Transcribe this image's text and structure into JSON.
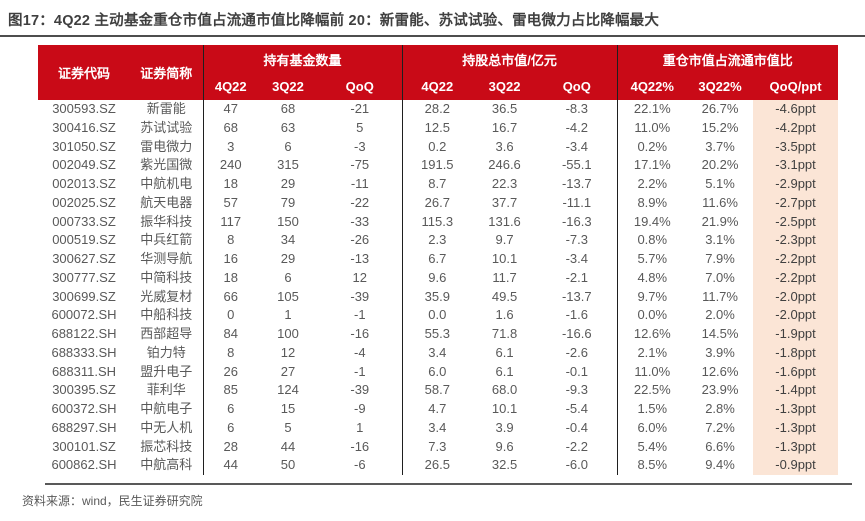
{
  "figure": {
    "title": "图17：4Q22 主动基金重仓市值占流通市值比降幅前 20：新雷能、苏试试验、雷电微力占比降幅最大",
    "source": "资料来源：wind，民生证券研究院"
  },
  "colors": {
    "header_bg": "#C90A17",
    "header_text": "#FFFFFF",
    "highlight_bg": "#FBE5D6",
    "highlight_text": "#404040",
    "body_text": "#595959",
    "title_text": "#3F3F3F"
  },
  "table": {
    "headers": {
      "code": "证券代码",
      "name": "证券简称",
      "groups": [
        {
          "label": "持有基金数量",
          "cols": [
            "4Q22",
            "3Q22",
            "QoQ"
          ]
        },
        {
          "label": "持股总市值/亿元",
          "cols": [
            "4Q22",
            "3Q22",
            "QoQ"
          ]
        },
        {
          "label": "重仓市值占流通市值比",
          "cols": [
            "4Q22%",
            "3Q22%",
            "QoQ/ppt"
          ]
        }
      ]
    }
  },
  "chart_data": {
    "type": "table",
    "title": "4Q22 主动基金重仓市值占流通市值比降幅前 20",
    "columns": [
      "证券代码",
      "证券简称",
      "持有基金数量 4Q22",
      "持有基金数量 3Q22",
      "持有基金数量 QoQ",
      "持股总市值/亿元 4Q22",
      "持股总市值/亿元 3Q22",
      "持股总市值/亿元 QoQ",
      "重仓市值占流通市值比 4Q22%",
      "重仓市值占流通市值比 3Q22%",
      "重仓市值占流通市值比 QoQ/ppt"
    ],
    "rows": [
      [
        "300593.SZ",
        "新雷能",
        "47",
        "68",
        "-21",
        "28.2",
        "36.5",
        "-8.3",
        "22.1%",
        "26.7%",
        "-4.6ppt"
      ],
      [
        "300416.SZ",
        "苏试试验",
        "68",
        "63",
        "5",
        "12.5",
        "16.7",
        "-4.2",
        "11.0%",
        "15.2%",
        "-4.2ppt"
      ],
      [
        "301050.SZ",
        "雷电微力",
        "3",
        "6",
        "-3",
        "0.2",
        "3.6",
        "-3.4",
        "0.2%",
        "3.7%",
        "-3.5ppt"
      ],
      [
        "002049.SZ",
        "紫光国微",
        "240",
        "315",
        "-75",
        "191.5",
        "246.6",
        "-55.1",
        "17.1%",
        "20.2%",
        "-3.1ppt"
      ],
      [
        "002013.SZ",
        "中航机电",
        "18",
        "29",
        "-11",
        "8.7",
        "22.3",
        "-13.7",
        "2.2%",
        "5.1%",
        "-2.9ppt"
      ],
      [
        "002025.SZ",
        "航天电器",
        "57",
        "79",
        "-22",
        "26.7",
        "37.7",
        "-11.1",
        "8.9%",
        "11.6%",
        "-2.7ppt"
      ],
      [
        "000733.SZ",
        "振华科技",
        "117",
        "150",
        "-33",
        "115.3",
        "131.6",
        "-16.3",
        "19.4%",
        "21.9%",
        "-2.5ppt"
      ],
      [
        "000519.SZ",
        "中兵红箭",
        "8",
        "34",
        "-26",
        "2.3",
        "9.7",
        "-7.3",
        "0.8%",
        "3.1%",
        "-2.3ppt"
      ],
      [
        "300627.SZ",
        "华测导航",
        "16",
        "29",
        "-13",
        "6.7",
        "10.1",
        "-3.4",
        "5.7%",
        "7.9%",
        "-2.2ppt"
      ],
      [
        "300777.SZ",
        "中简科技",
        "18",
        "6",
        "12",
        "9.6",
        "11.7",
        "-2.1",
        "4.8%",
        "7.0%",
        "-2.2ppt"
      ],
      [
        "300699.SZ",
        "光威复材",
        "66",
        "105",
        "-39",
        "35.9",
        "49.5",
        "-13.7",
        "9.7%",
        "11.7%",
        "-2.0ppt"
      ],
      [
        "600072.SH",
        "中船科技",
        "0",
        "1",
        "-1",
        "0.0",
        "1.6",
        "-1.6",
        "0.0%",
        "2.0%",
        "-2.0ppt"
      ],
      [
        "688122.SH",
        "西部超导",
        "84",
        "100",
        "-16",
        "55.3",
        "71.8",
        "-16.6",
        "12.6%",
        "14.5%",
        "-1.9ppt"
      ],
      [
        "688333.SH",
        "铂力特",
        "8",
        "12",
        "-4",
        "3.4",
        "6.1",
        "-2.6",
        "2.1%",
        "3.9%",
        "-1.8ppt"
      ],
      [
        "688311.SH",
        "盟升电子",
        "26",
        "27",
        "-1",
        "6.0",
        "6.1",
        "-0.1",
        "11.0%",
        "12.6%",
        "-1.6ppt"
      ],
      [
        "300395.SZ",
        "菲利华",
        "85",
        "124",
        "-39",
        "58.7",
        "68.0",
        "-9.3",
        "22.5%",
        "23.9%",
        "-1.4ppt"
      ],
      [
        "600372.SH",
        "中航电子",
        "6",
        "15",
        "-9",
        "4.7",
        "10.1",
        "-5.4",
        "1.5%",
        "2.8%",
        "-1.3ppt"
      ],
      [
        "688297.SH",
        "中无人机",
        "6",
        "5",
        "1",
        "3.4",
        "3.9",
        "-0.4",
        "6.0%",
        "7.2%",
        "-1.3ppt"
      ],
      [
        "300101.SZ",
        "振芯科技",
        "28",
        "44",
        "-16",
        "7.3",
        "9.6",
        "-2.2",
        "5.4%",
        "6.6%",
        "-1.3ppt"
      ],
      [
        "600862.SH",
        "中航高科",
        "44",
        "50",
        "-6",
        "26.5",
        "32.5",
        "-6.0",
        "8.5%",
        "9.4%",
        "-0.9ppt"
      ]
    ]
  }
}
